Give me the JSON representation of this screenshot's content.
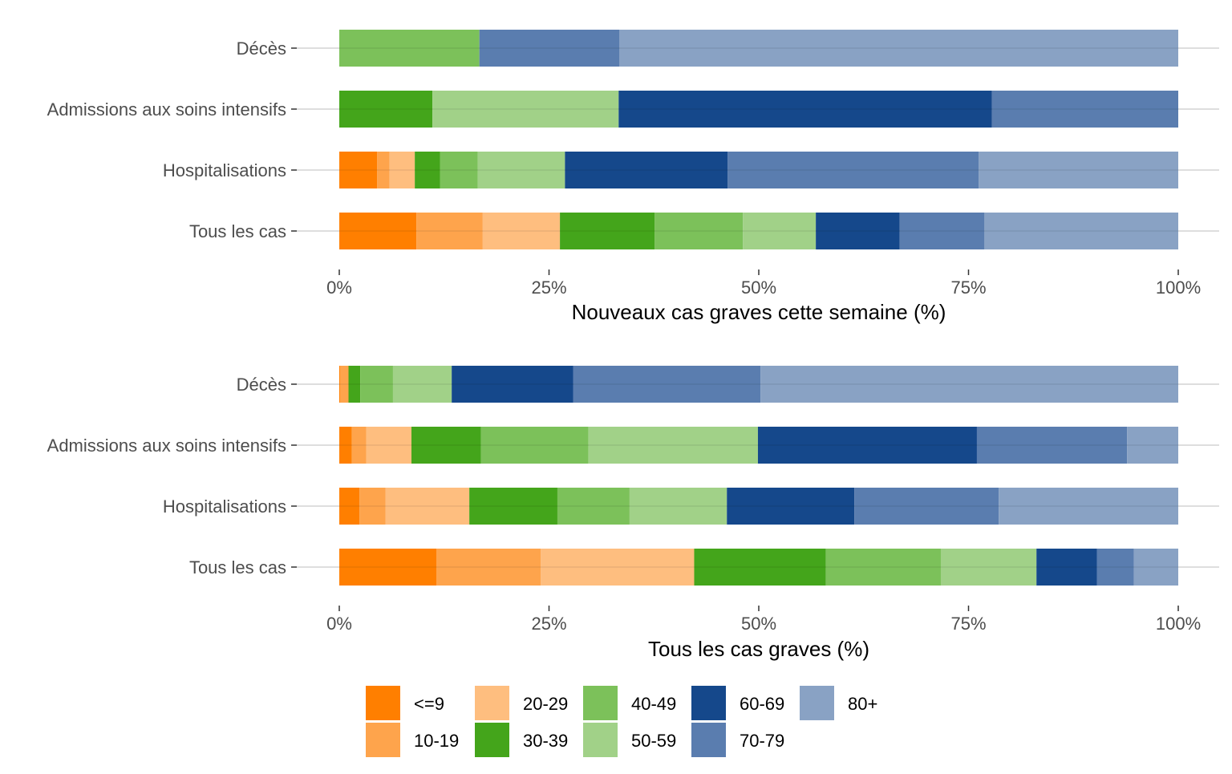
{
  "chart_data": [
    {
      "type": "bar",
      "orientation": "horizontal",
      "stacked": "percent",
      "categories": [
        "Décès",
        "Admissions aux soins intensifs",
        "Hospitalisations",
        "Tous les cas"
      ],
      "series": [
        {
          "name": "<=9",
          "values": [
            0,
            0,
            4.5,
            9.2
          ]
        },
        {
          "name": "10-19",
          "values": [
            0,
            0,
            1.5,
            7.9
          ]
        },
        {
          "name": "20-29",
          "values": [
            0,
            0,
            3.0,
            9.2
          ]
        },
        {
          "name": "30-39",
          "values": [
            0,
            11.1,
            3.0,
            11.3
          ]
        },
        {
          "name": "40-49",
          "values": [
            16.7,
            0,
            4.5,
            10.5
          ]
        },
        {
          "name": "50-59",
          "values": [
            0,
            22.2,
            10.4,
            8.7
          ]
        },
        {
          "name": "60-69",
          "values": [
            0,
            44.5,
            19.4,
            10.0
          ]
        },
        {
          "name": "70-79",
          "values": [
            16.7,
            22.2,
            29.9,
            10.1
          ]
        },
        {
          "name": "80+",
          "values": [
            66.6,
            0,
            23.8,
            23.1
          ]
        }
      ],
      "xlabel": "Nouveaux cas graves cette semaine (%)",
      "ylabel": "",
      "xlim": [
        0,
        100
      ],
      "xticks": [
        "0%",
        "25%",
        "50%",
        "75%",
        "100%"
      ],
      "grid": true
    },
    {
      "type": "bar",
      "orientation": "horizontal",
      "stacked": "percent",
      "categories": [
        "Décès",
        "Admissions aux soins intensifs",
        "Hospitalisations",
        "Tous les cas"
      ],
      "series": [
        {
          "name": "<=9",
          "values": [
            0.1,
            1.5,
            2.4,
            11.6
          ]
        },
        {
          "name": "10-19",
          "values": [
            1.0,
            1.7,
            3.1,
            12.4
          ]
        },
        {
          "name": "20-29",
          "values": [
            0,
            5.4,
            10.0,
            18.3
          ]
        },
        {
          "name": "30-39",
          "values": [
            1.4,
            8.3,
            10.5,
            15.7
          ]
        },
        {
          "name": "40-49",
          "values": [
            3.9,
            12.8,
            8.6,
            13.7
          ]
        },
        {
          "name": "50-59",
          "values": [
            7.0,
            20.2,
            11.6,
            11.4
          ]
        },
        {
          "name": "60-69",
          "values": [
            14.5,
            26.1,
            15.2,
            7.2
          ]
        },
        {
          "name": "70-79",
          "values": [
            22.3,
            17.9,
            17.2,
            4.4
          ]
        },
        {
          "name": "80+",
          "values": [
            49.8,
            6.1,
            21.4,
            5.3
          ]
        }
      ],
      "xlabel": "Tous les cas graves (%)",
      "ylabel": "",
      "xlim": [
        0,
        100
      ],
      "xticks": [
        "0%",
        "25%",
        "50%",
        "75%",
        "100%"
      ],
      "grid": true
    }
  ],
  "legend": {
    "placement": "bottom",
    "items": [
      {
        "label": "<=9",
        "color": "#ff7f00"
      },
      {
        "label": "10-19",
        "color": "#fea44c"
      },
      {
        "label": "20-29",
        "color": "#febe7f"
      },
      {
        "label": "30-39",
        "color": "#44a51b"
      },
      {
        "label": "40-49",
        "color": "#7cc15a"
      },
      {
        "label": "50-59",
        "color": "#a1d188"
      },
      {
        "label": "60-69",
        "color": "#15488b"
      },
      {
        "label": "70-79",
        "color": "#5a7daf"
      },
      {
        "label": "80+",
        "color": "#89a2c4"
      }
    ]
  }
}
